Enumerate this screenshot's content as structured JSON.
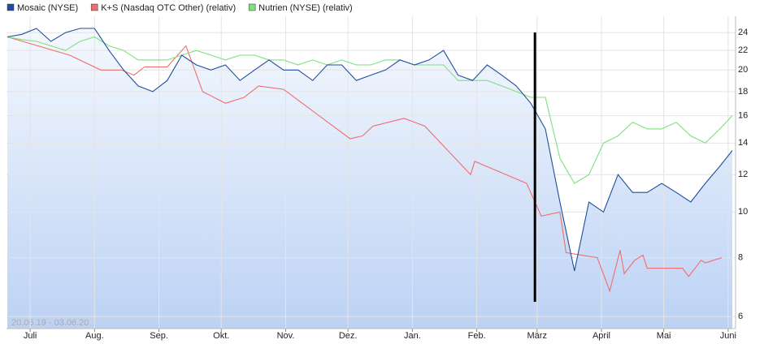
{
  "chart_data": {
    "type": "line",
    "footer": "20.06.19 - 03.06.20",
    "log_scale": true,
    "grid": true,
    "xlim": [
      0,
      349
    ],
    "ylim": [
      5.66,
      26
    ],
    "yticks": [
      6,
      8,
      10,
      12,
      14,
      16,
      18,
      20,
      22,
      24
    ],
    "xticks": [
      {
        "value": 11,
        "label": "Juli"
      },
      {
        "value": 42,
        "label": "Aug."
      },
      {
        "value": 73,
        "label": "Sep."
      },
      {
        "value": 103,
        "label": "Okt."
      },
      {
        "value": 134,
        "label": "Nov."
      },
      {
        "value": 164,
        "label": "Dez."
      },
      {
        "value": 195,
        "label": "Jan."
      },
      {
        "value": 226,
        "label": "Feb."
      },
      {
        "value": 255,
        "label": "März"
      },
      {
        "value": 286,
        "label": "April"
      },
      {
        "value": 316,
        "label": "Mai"
      },
      {
        "value": 347,
        "label": "Juni"
      }
    ],
    "vline_x": 254,
    "series": [
      {
        "name": "Mosaic (NYSE)",
        "color": "#1f4e9c",
        "area": true,
        "x": [
          0,
          7,
          14,
          21,
          28,
          35,
          42,
          49,
          56,
          63,
          70,
          77,
          84,
          91,
          98,
          105,
          112,
          119,
          126,
          133,
          140,
          147,
          154,
          161,
          168,
          175,
          182,
          189,
          196,
          203,
          210,
          217,
          224,
          231,
          238,
          245,
          252,
          259,
          266,
          273,
          280,
          287,
          294,
          301,
          308,
          315,
          322,
          329,
          336,
          343,
          349
        ],
        "values": [
          23.5,
          23.8,
          24.5,
          23,
          24,
          24.5,
          24.5,
          22,
          20,
          18.5,
          18,
          19,
          21.5,
          20.5,
          20,
          20.5,
          19,
          20,
          21,
          20,
          20,
          19,
          20.5,
          20.5,
          19,
          19.5,
          20,
          21,
          20.5,
          21,
          22,
          19.5,
          19,
          20.5,
          19.5,
          18.5,
          17,
          15,
          10.5,
          7.5,
          10.5,
          10,
          12,
          11,
          11,
          11.5,
          11,
          10.5,
          11.5,
          12.5,
          13.5
        ]
      },
      {
        "name": "K+S (Nasdaq OTC Other) (relativ)",
        "color": "#f06c6c",
        "x": [
          0,
          30,
          45,
          55,
          61,
          66,
          77,
          86,
          94,
          105,
          114,
          121,
          133,
          165,
          171,
          176,
          191,
          201,
          223,
          225,
          250,
          257,
          266,
          269,
          284,
          290,
          295,
          297,
          302,
          306,
          308,
          325,
          328,
          334,
          336,
          344
        ],
        "values": [
          23.5,
          21.5,
          20,
          20,
          19.5,
          20.3,
          20.3,
          22.5,
          18,
          17,
          17.5,
          18.5,
          18.2,
          14.3,
          14.5,
          15.2,
          15.8,
          15.2,
          12,
          12.8,
          11.5,
          9.8,
          10,
          8.2,
          8,
          6.8,
          8.3,
          7.4,
          7.9,
          8.1,
          7.6,
          7.6,
          7.3,
          7.9,
          7.8,
          8
        ]
      },
      {
        "name": "Nutrien (NYSE) (relativ)",
        "color": "#7ee07e",
        "x": [
          0,
          7,
          14,
          21,
          28,
          35,
          42,
          49,
          56,
          63,
          70,
          77,
          84,
          91,
          98,
          105,
          112,
          119,
          126,
          133,
          140,
          147,
          154,
          161,
          168,
          175,
          182,
          189,
          196,
          203,
          210,
          217,
          224,
          231,
          238,
          245,
          252,
          259,
          266,
          273,
          280,
          287,
          294,
          301,
          308,
          315,
          322,
          329,
          336,
          343,
          349
        ],
        "values": [
          23.5,
          23.2,
          23,
          22.5,
          22,
          23,
          23.5,
          22.5,
          22,
          21,
          21,
          21,
          21.5,
          22,
          21.5,
          21,
          21.5,
          21.5,
          21,
          21,
          20.5,
          21,
          20.5,
          21,
          20.5,
          20.5,
          21,
          21,
          20.5,
          20.5,
          20.5,
          19,
          19,
          19,
          18.5,
          18,
          17.5,
          17.5,
          13,
          11.5,
          12,
          14,
          14.5,
          15.5,
          15,
          15,
          15.5,
          14.5,
          14,
          15,
          16
        ]
      }
    ]
  }
}
